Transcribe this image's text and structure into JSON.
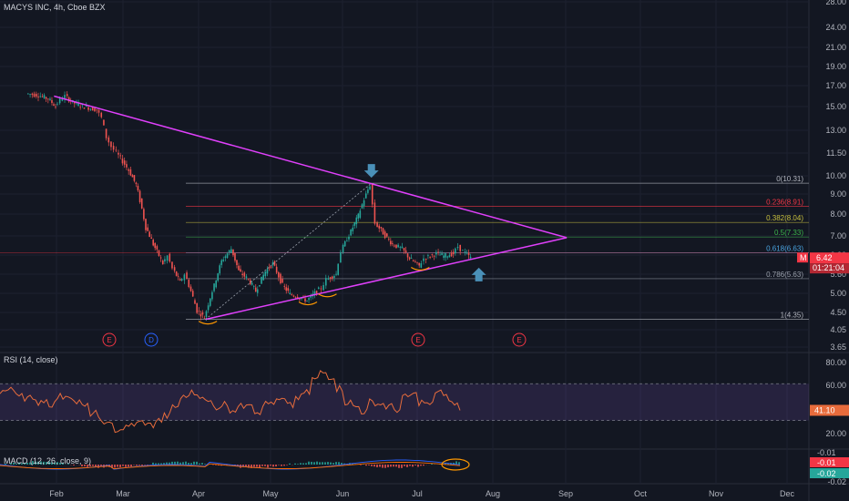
{
  "header": {
    "title": "MACYS INC, 4h, Cboe BZX"
  },
  "price_axis": {
    "ticks": [
      "28.00",
      "24.00",
      "21.00",
      "19.00",
      "17.00",
      "15.00",
      "13.00",
      "11.50",
      "10.00",
      "9.00",
      "8.00",
      "7.00",
      "6.00",
      "5.60",
      "5.00",
      "4.50",
      "4.05",
      "3.65"
    ]
  },
  "price_tags": {
    "last_price": "6.42",
    "countdown": "01:21:04",
    "marker": "M"
  },
  "fib_labels": [
    {
      "ratio": "0",
      "price": "10.31",
      "text": "0(10.31)",
      "color": "#b2b5be"
    },
    {
      "ratio": "0.236",
      "price": "8.91",
      "text": "0.236(8.91)",
      "color": "#f23645"
    },
    {
      "ratio": "0.382",
      "price": "8.04",
      "text": "0.382(8.04)",
      "color": "#c8c040"
    },
    {
      "ratio": "0.5",
      "price": "7.33",
      "text": "0.5(7.33)",
      "color": "#3cb34a"
    },
    {
      "ratio": "0.618",
      "price": "6.63",
      "text": "0.618(6.63)",
      "color": "#4aa3df"
    },
    {
      "ratio": "0.786",
      "price": "5.63",
      "text": "0.786(5.63)",
      "color": "#9aa0ab"
    },
    {
      "ratio": "1",
      "price": "4.35",
      "text": "1(4.35)",
      "color": "#b2b5be"
    }
  ],
  "events": [
    {
      "letter": "E",
      "color": "#f23645"
    },
    {
      "letter": "D",
      "color": "#2962ff"
    },
    {
      "letter": "E",
      "color": "#f23645"
    },
    {
      "letter": "E",
      "color": "#f23645"
    }
  ],
  "rsi": {
    "title": "RSI (14, close)",
    "ticks": [
      "80.00",
      "60.00",
      "20.00"
    ],
    "value": "41.10",
    "upper": 70,
    "lower": 30
  },
  "macd": {
    "title": "MACD (12, 26, close, 9)",
    "ticks": [
      "-0.01",
      "-0.02"
    ],
    "tags": [
      "-0.01",
      "-0.01",
      "-0.02"
    ]
  },
  "time_axis": {
    "labels": [
      "Feb",
      "Mar",
      "Apr",
      "May",
      "Jun",
      "Jul",
      "Aug",
      "Sep",
      "Oct",
      "Nov",
      "Dec"
    ]
  },
  "colors": {
    "background": "#131722",
    "up": "#26a69a",
    "down": "#ef5350",
    "triangle": "#e040fb",
    "arrow": "#4a90b8",
    "rsi_line": "#e86c3c",
    "rsi_band": "#7e57c2",
    "macd_line": "#2962ff",
    "signal_line": "#ff6d00"
  },
  "chart_data": {
    "type": "candlestick",
    "title": "MACYS INC, 4h, Cboe BZX",
    "x_months": [
      "Feb",
      "Mar",
      "Apr",
      "May",
      "Jun",
      "Jul",
      "Aug",
      "Sep",
      "Oct",
      "Nov",
      "Dec"
    ],
    "price_range": [
      3.65,
      28.0
    ],
    "price_close": [
      [
        "Jan-20",
        18.2
      ],
      [
        "Jan-25",
        18.0
      ],
      [
        "Jan-29",
        17.6
      ],
      [
        "Feb-01",
        16.8
      ],
      [
        "Feb-03",
        17.5
      ],
      [
        "Feb-05",
        17.9
      ],
      [
        "Feb-08",
        17.2
      ],
      [
        "Feb-12",
        16.8
      ],
      [
        "Feb-18",
        16.4
      ],
      [
        "Feb-20",
        15.6
      ],
      [
        "Feb-22",
        13.8
      ],
      [
        "Feb-24",
        13.0
      ],
      [
        "Feb-26",
        12.5
      ],
      [
        "Mar-02",
        11.2
      ],
      [
        "Mar-05",
        10.2
      ],
      [
        "Mar-09",
        7.8
      ],
      [
        "Mar-12",
        7.0
      ],
      [
        "Mar-16",
        6.2
      ],
      [
        "Mar-18",
        6.5
      ],
      [
        "Mar-20",
        6.0
      ],
      [
        "Mar-23",
        5.5
      ],
      [
        "Mar-25",
        5.8
      ],
      [
        "Mar-30",
        4.6
      ],
      [
        "Apr-02",
        4.4
      ],
      [
        "Apr-06",
        5.4
      ],
      [
        "Apr-09",
        6.3
      ],
      [
        "Apr-13",
        6.8
      ],
      [
        "Apr-16",
        5.9
      ],
      [
        "Apr-20",
        5.6
      ],
      [
        "Apr-23",
        5.2
      ],
      [
        "Apr-27",
        5.9
      ],
      [
        "Apr-30",
        6.2
      ],
      [
        "May-04",
        5.4
      ],
      [
        "May-07",
        5.1
      ],
      [
        "May-11",
        5.0
      ],
      [
        "May-14",
        4.9
      ],
      [
        "May-18",
        5.2
      ],
      [
        "May-20",
        5.3
      ],
      [
        "May-22",
        5.6
      ],
      [
        "May-26",
        5.8
      ],
      [
        "May-28",
        6.7
      ],
      [
        "Jun-01",
        7.6
      ],
      [
        "Jun-04",
        8.4
      ],
      [
        "Jun-08",
        9.9
      ],
      [
        "Jun-09",
        10.2
      ],
      [
        "Jun-10",
        9.0
      ],
      [
        "Jun-11",
        8.0
      ],
      [
        "Jun-15",
        7.4
      ],
      [
        "Jun-18",
        7.0
      ],
      [
        "Jun-22",
        6.8
      ],
      [
        "Jun-25",
        6.4
      ],
      [
        "Jun-29",
        6.1
      ],
      [
        "Jul-01",
        6.4
      ],
      [
        "Jul-06",
        6.6
      ],
      [
        "Jul-09",
        6.5
      ],
      [
        "Jul-13",
        6.6
      ],
      [
        "Jul-15",
        6.9
      ],
      [
        "Jul-17",
        6.7
      ],
      [
        "Jul-20",
        6.42
      ]
    ],
    "fibonacci": [
      {
        "ratio": 0,
        "price": 10.31
      },
      {
        "ratio": 0.236,
        "price": 8.91
      },
      {
        "ratio": 0.382,
        "price": 8.04
      },
      {
        "ratio": 0.5,
        "price": 7.33
      },
      {
        "ratio": 0.618,
        "price": 6.63
      },
      {
        "ratio": 0.786,
        "price": 5.63
      },
      {
        "ratio": 1,
        "price": 4.35
      }
    ],
    "triangle": {
      "upper": [
        [
          "Jan-31",
          17.9
        ],
        [
          "Aug-28",
          7.3
        ]
      ],
      "lower": [
        [
          "Apr-02",
          4.35
        ],
        [
          "Aug-28",
          7.3
        ]
      ]
    },
    "rsi": {
      "range": [
        0,
        100
      ],
      "values": [
        62,
        63,
        60,
        55,
        50,
        52,
        48,
        56,
        58,
        50,
        45,
        38,
        30,
        25,
        20,
        22,
        26,
        28,
        25,
        30,
        35,
        45,
        55,
        60,
        58,
        50,
        45,
        48,
        42,
        45,
        50,
        40,
        48,
        50,
        52,
        46,
        55,
        60,
        75,
        82,
        78,
        65,
        50,
        45,
        40,
        50,
        48,
        45,
        42,
        55,
        58,
        50,
        47,
        62,
        55,
        48,
        41.1
      ],
      "last": 41.1
    },
    "macd": {
      "last": [
        -0.01,
        -0.01,
        -0.02
      ]
    }
  }
}
